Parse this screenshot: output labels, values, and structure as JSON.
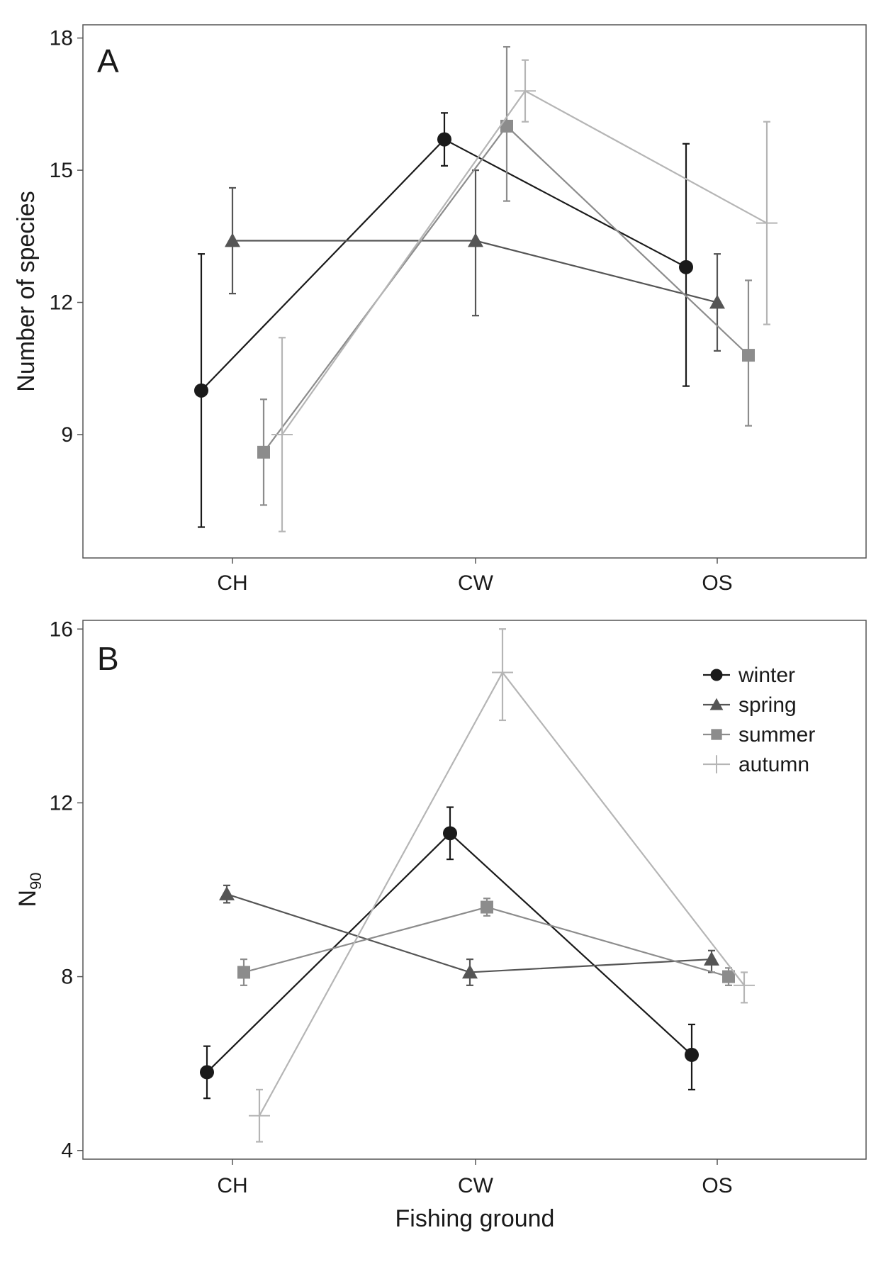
{
  "chart_data": [
    {
      "type": "line",
      "panel_label": "A",
      "xlabel": "",
      "ylabel": "Number of species",
      "categories": [
        "CH",
        "CW",
        "OS"
      ],
      "ylim": [
        6.2,
        18.3
      ],
      "yticks": [
        9,
        12,
        15,
        18
      ],
      "grid": false,
      "error_bars": true,
      "series": [
        {
          "name": "winter",
          "color": "#1a1a1a",
          "marker": "circle",
          "values": [
            10.0,
            15.7,
            12.8
          ],
          "err_low": [
            6.9,
            15.1,
            10.1
          ],
          "err_high": [
            13.1,
            16.3,
            15.6
          ]
        },
        {
          "name": "spring",
          "color": "#555555",
          "marker": "triangle",
          "values": [
            13.4,
            13.4,
            12.0
          ],
          "err_low": [
            12.2,
            11.7,
            10.9
          ],
          "err_high": [
            14.6,
            15.0,
            13.1
          ]
        },
        {
          "name": "summer",
          "color": "#8c8c8c",
          "marker": "square",
          "values": [
            8.6,
            16.0,
            10.8
          ],
          "err_low": [
            7.4,
            14.3,
            9.2
          ],
          "err_high": [
            9.8,
            17.8,
            12.5
          ]
        },
        {
          "name": "autumn",
          "color": "#b5b5b5",
          "marker": "plus",
          "values": [
            9.0,
            16.8,
            13.8
          ],
          "err_low": [
            6.8,
            16.1,
            11.5
          ],
          "err_high": [
            11.2,
            17.5,
            16.1
          ]
        }
      ]
    },
    {
      "type": "line",
      "panel_label": "B",
      "xlabel": "Fishing ground",
      "ylabel": "N",
      "ylabel_subscript": "90",
      "categories": [
        "CH",
        "CW",
        "OS"
      ],
      "ylim": [
        3.8,
        16.2
      ],
      "yticks": [
        4,
        8,
        12,
        16
      ],
      "grid": false,
      "error_bars": true,
      "legend_position": "top-right",
      "series": [
        {
          "name": "winter",
          "color": "#1a1a1a",
          "marker": "circle",
          "values": [
            5.8,
            11.3,
            6.2
          ],
          "err_low": [
            5.2,
            10.7,
            5.4
          ],
          "err_high": [
            6.4,
            11.9,
            6.9
          ]
        },
        {
          "name": "spring",
          "color": "#555555",
          "marker": "triangle",
          "values": [
            9.9,
            8.1,
            8.4
          ],
          "err_low": [
            9.7,
            7.8,
            8.1
          ],
          "err_high": [
            10.1,
            8.4,
            8.6
          ]
        },
        {
          "name": "summer",
          "color": "#8c8c8c",
          "marker": "square",
          "values": [
            8.1,
            9.6,
            8.0
          ],
          "err_low": [
            7.8,
            9.4,
            7.8
          ],
          "err_high": [
            8.4,
            9.8,
            8.2
          ]
        },
        {
          "name": "autumn",
          "color": "#b5b5b5",
          "marker": "plus",
          "values": [
            4.8,
            15.0,
            7.8
          ],
          "err_low": [
            4.2,
            13.9,
            7.4
          ],
          "err_high": [
            5.4,
            16.0,
            8.1
          ]
        }
      ]
    }
  ]
}
